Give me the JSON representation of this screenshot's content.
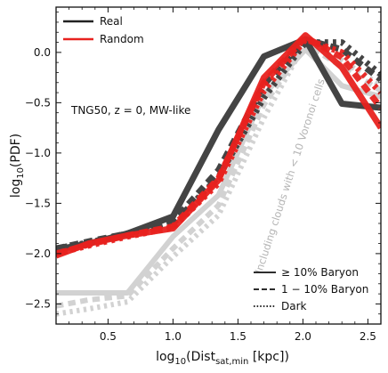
{
  "chart_data": {
    "type": "line",
    "xlabel_main": "log",
    "xlabel_sub": "10",
    "xlabel_rest": "(Dist",
    "xlabel_sub2": "sat,min",
    "xlabel_end": " [kpc])",
    "ylabel_main": "log",
    "ylabel_sub": "10",
    "ylabel_end": "(PDF)",
    "xlim": [
      0.1,
      2.6
    ],
    "ylim": [
      -2.7,
      0.45
    ],
    "xticks": [
      0.5,
      1.0,
      1.5,
      2.0,
      2.5
    ],
    "xtick_labels": [
      "0.5",
      "1.0",
      "1.5",
      "2.0",
      "2.5"
    ],
    "yticks": [
      0.0,
      -0.5,
      -1.0,
      -1.5,
      -2.0,
      -2.5
    ],
    "ytick_labels": [
      "0.0",
      "−0.5",
      "−1.0",
      "−1.5",
      "−2.0",
      "−2.5"
    ],
    "colors": {
      "real": "#444444",
      "random": "#e8221f",
      "cells": "#d2d2d2"
    },
    "legend_color": [
      {
        "label": "Real",
        "color": "#222222"
      },
      {
        "label": "Random",
        "color": "#e8221f"
      }
    ],
    "legend_style": [
      {
        "label": "≥ 10% Baryon",
        "dash": "solid"
      },
      {
        "label": "1 − 10% Baryon",
        "dash": "dashed"
      },
      {
        "label": "Dark",
        "dash": "dotted"
      }
    ],
    "annotation": "TNG50, z = 0, MW-like",
    "rotated_annotation": "Including clouds with < 10 Voronoi cells",
    "series": [
      {
        "group": "cells",
        "style": "solid",
        "points": [
          [
            0.1,
            -2.39
          ],
          [
            0.35,
            -2.39
          ],
          [
            0.65,
            -2.39
          ],
          [
            1.0,
            -1.83
          ],
          [
            1.35,
            -1.42
          ],
          [
            1.7,
            -0.42
          ],
          [
            2.02,
            0.03
          ],
          [
            2.3,
            -0.33
          ],
          [
            2.6,
            -0.44
          ]
        ]
      },
      {
        "group": "cells",
        "style": "dashed",
        "points": [
          [
            0.1,
            -2.52
          ],
          [
            0.35,
            -2.46
          ],
          [
            0.65,
            -2.42
          ],
          [
            1.0,
            -1.95
          ],
          [
            1.35,
            -1.52
          ],
          [
            1.7,
            -0.52
          ],
          [
            2.02,
            0.08
          ],
          [
            2.3,
            -0.14
          ],
          [
            2.6,
            -0.38
          ]
        ]
      },
      {
        "group": "cells",
        "style": "dotted",
        "points": [
          [
            0.1,
            -2.6
          ],
          [
            0.35,
            -2.55
          ],
          [
            0.65,
            -2.48
          ],
          [
            1.0,
            -2.03
          ],
          [
            1.35,
            -1.62
          ],
          [
            1.7,
            -0.65
          ],
          [
            2.02,
            0.1
          ],
          [
            2.3,
            -0.08
          ],
          [
            2.6,
            -0.33
          ]
        ]
      },
      {
        "group": "real",
        "style": "solid",
        "points": [
          [
            0.1,
            -1.96
          ],
          [
            0.35,
            -1.9
          ],
          [
            0.65,
            -1.8
          ],
          [
            1.0,
            -1.63
          ],
          [
            1.35,
            -0.77
          ],
          [
            1.7,
            -0.04
          ],
          [
            2.02,
            0.13
          ],
          [
            2.3,
            -0.51
          ],
          [
            2.6,
            -0.55
          ]
        ]
      },
      {
        "group": "real",
        "style": "dashed",
        "points": [
          [
            0.1,
            -1.95
          ],
          [
            0.35,
            -1.88
          ],
          [
            0.65,
            -1.8
          ],
          [
            1.0,
            -1.68
          ],
          [
            1.35,
            -1.17
          ],
          [
            1.7,
            -0.32
          ],
          [
            2.02,
            0.13
          ],
          [
            2.3,
            0.03
          ],
          [
            2.6,
            -0.27
          ]
        ]
      },
      {
        "group": "real",
        "style": "dotted",
        "points": [
          [
            0.1,
            -1.95
          ],
          [
            0.35,
            -1.89
          ],
          [
            0.65,
            -1.8
          ],
          [
            1.0,
            -1.7
          ],
          [
            1.35,
            -1.24
          ],
          [
            1.7,
            -0.45
          ],
          [
            2.02,
            0.1
          ],
          [
            2.3,
            0.1
          ],
          [
            2.6,
            -0.22
          ]
        ]
      },
      {
        "group": "random",
        "style": "solid",
        "points": [
          [
            0.1,
            -2.02
          ],
          [
            0.35,
            -1.9
          ],
          [
            0.65,
            -1.82
          ],
          [
            1.0,
            -1.75
          ],
          [
            1.35,
            -1.27
          ],
          [
            1.7,
            -0.25
          ],
          [
            2.02,
            0.17
          ],
          [
            2.3,
            -0.15
          ],
          [
            2.6,
            -0.75
          ]
        ]
      },
      {
        "group": "random",
        "style": "dashed",
        "points": [
          [
            0.1,
            -2.0
          ],
          [
            0.35,
            -1.91
          ],
          [
            0.65,
            -1.82
          ],
          [
            1.0,
            -1.73
          ],
          [
            1.35,
            -1.25
          ],
          [
            1.7,
            -0.3
          ],
          [
            2.02,
            0.15
          ],
          [
            2.3,
            -0.05
          ],
          [
            2.6,
            -0.55
          ]
        ]
      },
      {
        "group": "random",
        "style": "dotted",
        "points": [
          [
            0.1,
            -2.0
          ],
          [
            0.35,
            -1.92
          ],
          [
            0.65,
            -1.83
          ],
          [
            1.0,
            -1.74
          ],
          [
            1.35,
            -1.3
          ],
          [
            1.7,
            -0.38
          ],
          [
            2.02,
            0.13
          ],
          [
            2.3,
            0.0
          ],
          [
            2.6,
            -0.4
          ]
        ]
      }
    ]
  }
}
